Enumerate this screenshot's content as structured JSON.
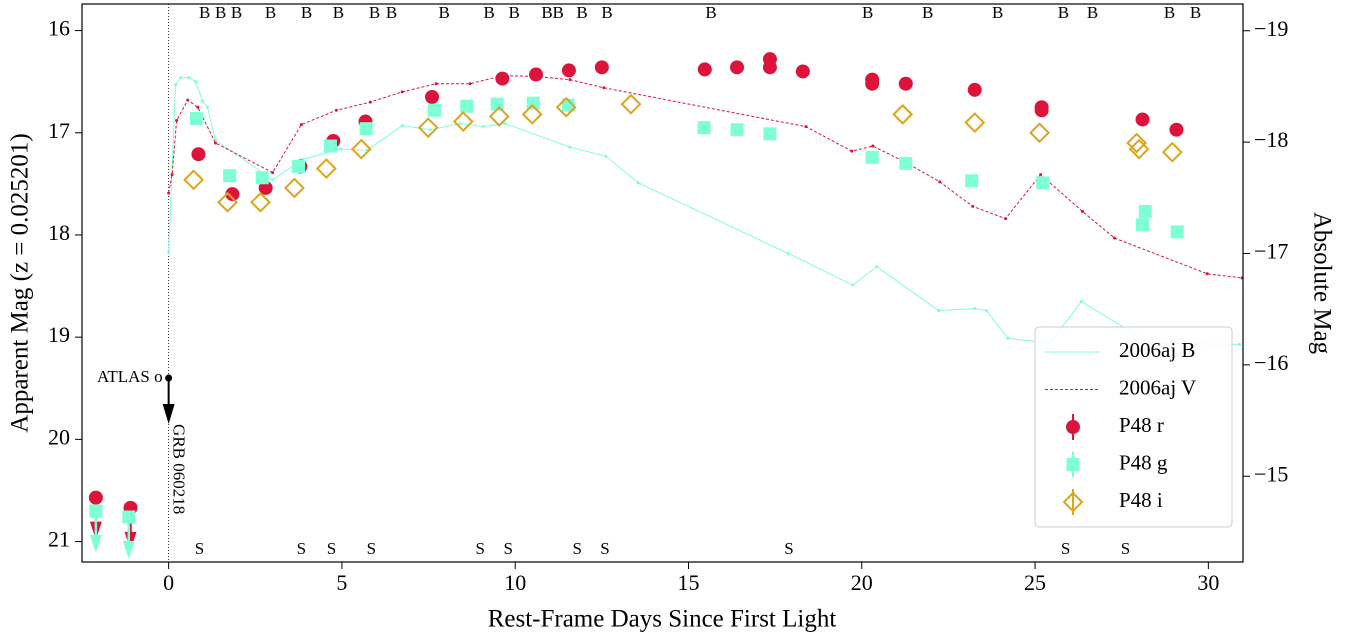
{
  "chart_data": {
    "type": "scatter",
    "xlabel": "Rest-Frame Days Since First Light",
    "ylabel": "Apparent Mag (z = 0.025201)",
    "y2label": "Absolute Mag",
    "xlim": [
      -2.5,
      31
    ],
    "xticks": [
      0,
      5,
      10,
      15,
      20,
      25,
      30
    ],
    "ylim": [
      15.74,
      21.2
    ],
    "yticks": [
      16,
      17,
      18,
      19,
      20,
      21
    ],
    "y2lim": [
      -19.24,
      -14.23
    ],
    "y2ticks": [
      {
        "value": -19,
        "label": "−19"
      },
      {
        "value": -18,
        "label": "−18"
      },
      {
        "value": -17,
        "label": "−17"
      },
      {
        "value": -16,
        "label": "−16"
      },
      {
        "value": -15,
        "label": "−15"
      }
    ],
    "y_inverted": true,
    "legend": "lower right",
    "series": [
      {
        "name": "2006aj B",
        "color": "#7fffd4",
        "marker": "line",
        "x": [
          0.0,
          0.2,
          0.35,
          0.58,
          0.78,
          0.98,
          1.12,
          1.35,
          3.0,
          3.86,
          4.96,
          5.73,
          6.74,
          7.55,
          8.41,
          9.08,
          9.71,
          11.58,
          12.62,
          13.55,
          17.87,
          19.74,
          20.43,
          22.22,
          23.26,
          23.6,
          24.21,
          25.42,
          26.34,
          28.3,
          30.9
        ],
        "values": [
          18.17,
          16.53,
          16.46,
          16.46,
          16.5,
          16.69,
          16.75,
          17.07,
          17.46,
          17.26,
          17.16,
          17.17,
          16.93,
          16.97,
          16.91,
          16.94,
          16.91,
          17.14,
          17.23,
          17.49,
          18.18,
          18.49,
          18.31,
          18.74,
          18.72,
          18.74,
          19.01,
          19.06,
          18.65,
          19.06,
          19.07
        ]
      },
      {
        "name": "2006aj V",
        "color": "#dc143c",
        "marker": "dashed",
        "x": [
          0.0,
          0.1,
          0.23,
          0.55,
          0.84,
          1.35,
          3.0,
          3.83,
          4.84,
          5.82,
          6.74,
          7.72,
          8.7,
          9.65,
          10.63,
          11.58,
          12.56,
          18.39,
          19.71,
          20.32,
          21.27,
          22.25,
          23.2,
          24.15,
          25.16,
          26.37,
          27.29,
          29.97,
          30.98
        ],
        "values": [
          17.59,
          17.41,
          16.88,
          16.68,
          16.75,
          17.1,
          17.39,
          16.92,
          16.78,
          16.7,
          16.6,
          16.52,
          16.52,
          16.44,
          16.45,
          16.48,
          16.56,
          16.94,
          17.18,
          17.13,
          17.29,
          17.48,
          17.72,
          17.84,
          17.41,
          17.77,
          18.03,
          18.38,
          18.42
        ]
      },
      {
        "name": "P48 r",
        "color": "#dc143c",
        "marker": "circle",
        "upper_limit_indices": [
          0,
          1
        ],
        "x": [
          -2.1,
          -1.1,
          0.86,
          1.84,
          2.8,
          3.8,
          4.75,
          5.68,
          7.6,
          9.63,
          10.6,
          11.55,
          12.5,
          15.47,
          16.4,
          17.35,
          17.35,
          18.3,
          20.3,
          20.3,
          21.27,
          23.26,
          25.19,
          25.19,
          28.1,
          29.08
        ],
        "values": [
          20.57,
          20.67,
          17.21,
          17.6,
          17.54,
          17.33,
          17.08,
          16.89,
          16.65,
          16.47,
          16.43,
          16.39,
          16.36,
          16.38,
          16.36,
          16.28,
          16.36,
          16.4,
          16.48,
          16.52,
          16.52,
          16.58,
          16.75,
          16.78,
          16.87,
          16.97
        ]
      },
      {
        "name": "P48 g",
        "color": "#7fffd4",
        "marker": "square",
        "upper_limit_indices": [
          0,
          1
        ],
        "x": [
          -2.1,
          -1.15,
          0.8,
          1.76,
          2.7,
          3.75,
          4.67,
          5.7,
          7.67,
          8.6,
          9.48,
          10.52,
          11.53,
          15.45,
          16.4,
          17.35,
          20.3,
          21.27,
          23.17,
          25.22,
          28.1,
          28.18,
          29.1
        ],
        "values": [
          20.7,
          20.76,
          16.86,
          17.42,
          17.44,
          17.33,
          17.13,
          16.96,
          16.78,
          16.74,
          16.72,
          16.71,
          16.73,
          16.95,
          16.97,
          17.01,
          17.24,
          17.3,
          17.47,
          17.49,
          17.9,
          17.77,
          17.97
        ]
      },
      {
        "name": "P48 i",
        "color": "#daa520",
        "marker": "diamond",
        "x": [
          0.72,
          1.7,
          2.65,
          3.63,
          4.55,
          5.56,
          7.49,
          8.5,
          9.54,
          10.49,
          11.47,
          13.34,
          21.18,
          23.26,
          25.13,
          27.93,
          28.0,
          28.96
        ],
        "values": [
          17.46,
          17.68,
          17.68,
          17.54,
          17.35,
          17.16,
          16.95,
          16.89,
          16.84,
          16.82,
          16.75,
          16.72,
          16.82,
          16.9,
          17.0,
          17.1,
          17.16,
          17.19
        ]
      }
    ],
    "epoch_markers": [
      {
        "label": "B",
        "position": "top",
        "x": [
          1.04,
          1.5,
          1.96,
          2.94,
          3.98,
          4.9,
          5.94,
          6.43,
          7.95,
          9.25,
          9.97,
          10.92,
          11.24,
          11.93,
          12.65,
          15.65,
          20.17,
          21.9,
          23.92,
          25.82,
          26.66,
          28.88,
          29.63
        ]
      },
      {
        "label": "S",
        "position": "bottom",
        "x": [
          0.89,
          3.83,
          4.7,
          5.85,
          8.99,
          9.8,
          11.79,
          12.59,
          17.9,
          25.88,
          27.61
        ]
      }
    ],
    "annotations": [
      {
        "text": "ATLAS o",
        "x": 0,
        "y": 19.4
      },
      {
        "text": "GRB 060218",
        "x": 0
      }
    ]
  }
}
